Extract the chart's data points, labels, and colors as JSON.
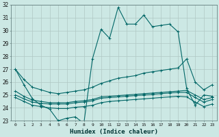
{
  "xlabel": "Humidex (Indice chaleur)",
  "bg_color": "#cce8e4",
  "grid_color": "#b0c8c4",
  "line_color": "#006666",
  "xlim": [
    -0.5,
    23.5
  ],
  "ylim": [
    23,
    32
  ],
  "yticks": [
    23,
    24,
    25,
    26,
    27,
    28,
    29,
    30,
    31,
    32
  ],
  "xticks": [
    0,
    1,
    2,
    3,
    4,
    5,
    6,
    7,
    8,
    9,
    10,
    11,
    12,
    13,
    14,
    15,
    16,
    17,
    18,
    19,
    20,
    21,
    22,
    23
  ],
  "series": {
    "main": [
      27.0,
      25.8,
      24.7,
      24.2,
      23.9,
      23.0,
      23.2,
      23.3,
      22.8,
      27.8,
      30.1,
      29.4,
      31.8,
      30.5,
      30.5,
      31.2,
      30.3,
      30.4,
      30.5,
      29.9,
      25.5,
      24.2,
      25.0,
      24.9
    ],
    "upper": [
      27.0,
      26.2,
      25.6,
      25.4,
      25.2,
      25.1,
      25.2,
      25.3,
      25.4,
      25.6,
      25.9,
      26.1,
      26.3,
      26.4,
      26.5,
      26.7,
      26.8,
      26.9,
      27.0,
      27.1,
      27.8,
      26.0,
      25.4,
      25.8
    ],
    "mid_upper": [
      25.3,
      24.9,
      24.6,
      24.5,
      24.4,
      24.4,
      24.4,
      24.5,
      24.55,
      24.65,
      24.85,
      24.9,
      24.95,
      25.0,
      25.05,
      25.1,
      25.15,
      25.2,
      25.25,
      25.3,
      25.35,
      25.0,
      24.65,
      24.8
    ],
    "mid_lower": [
      25.0,
      24.7,
      24.45,
      24.35,
      24.3,
      24.3,
      24.3,
      24.4,
      24.45,
      24.55,
      24.75,
      24.8,
      24.85,
      24.9,
      24.95,
      25.0,
      25.05,
      25.1,
      25.15,
      25.2,
      25.2,
      24.8,
      24.45,
      24.65
    ],
    "lower": [
      24.8,
      24.5,
      24.2,
      24.1,
      24.0,
      23.95,
      23.95,
      24.05,
      24.1,
      24.2,
      24.4,
      24.5,
      24.55,
      24.6,
      24.65,
      24.7,
      24.75,
      24.8,
      24.85,
      24.9,
      24.85,
      24.45,
      24.1,
      24.3
    ]
  }
}
